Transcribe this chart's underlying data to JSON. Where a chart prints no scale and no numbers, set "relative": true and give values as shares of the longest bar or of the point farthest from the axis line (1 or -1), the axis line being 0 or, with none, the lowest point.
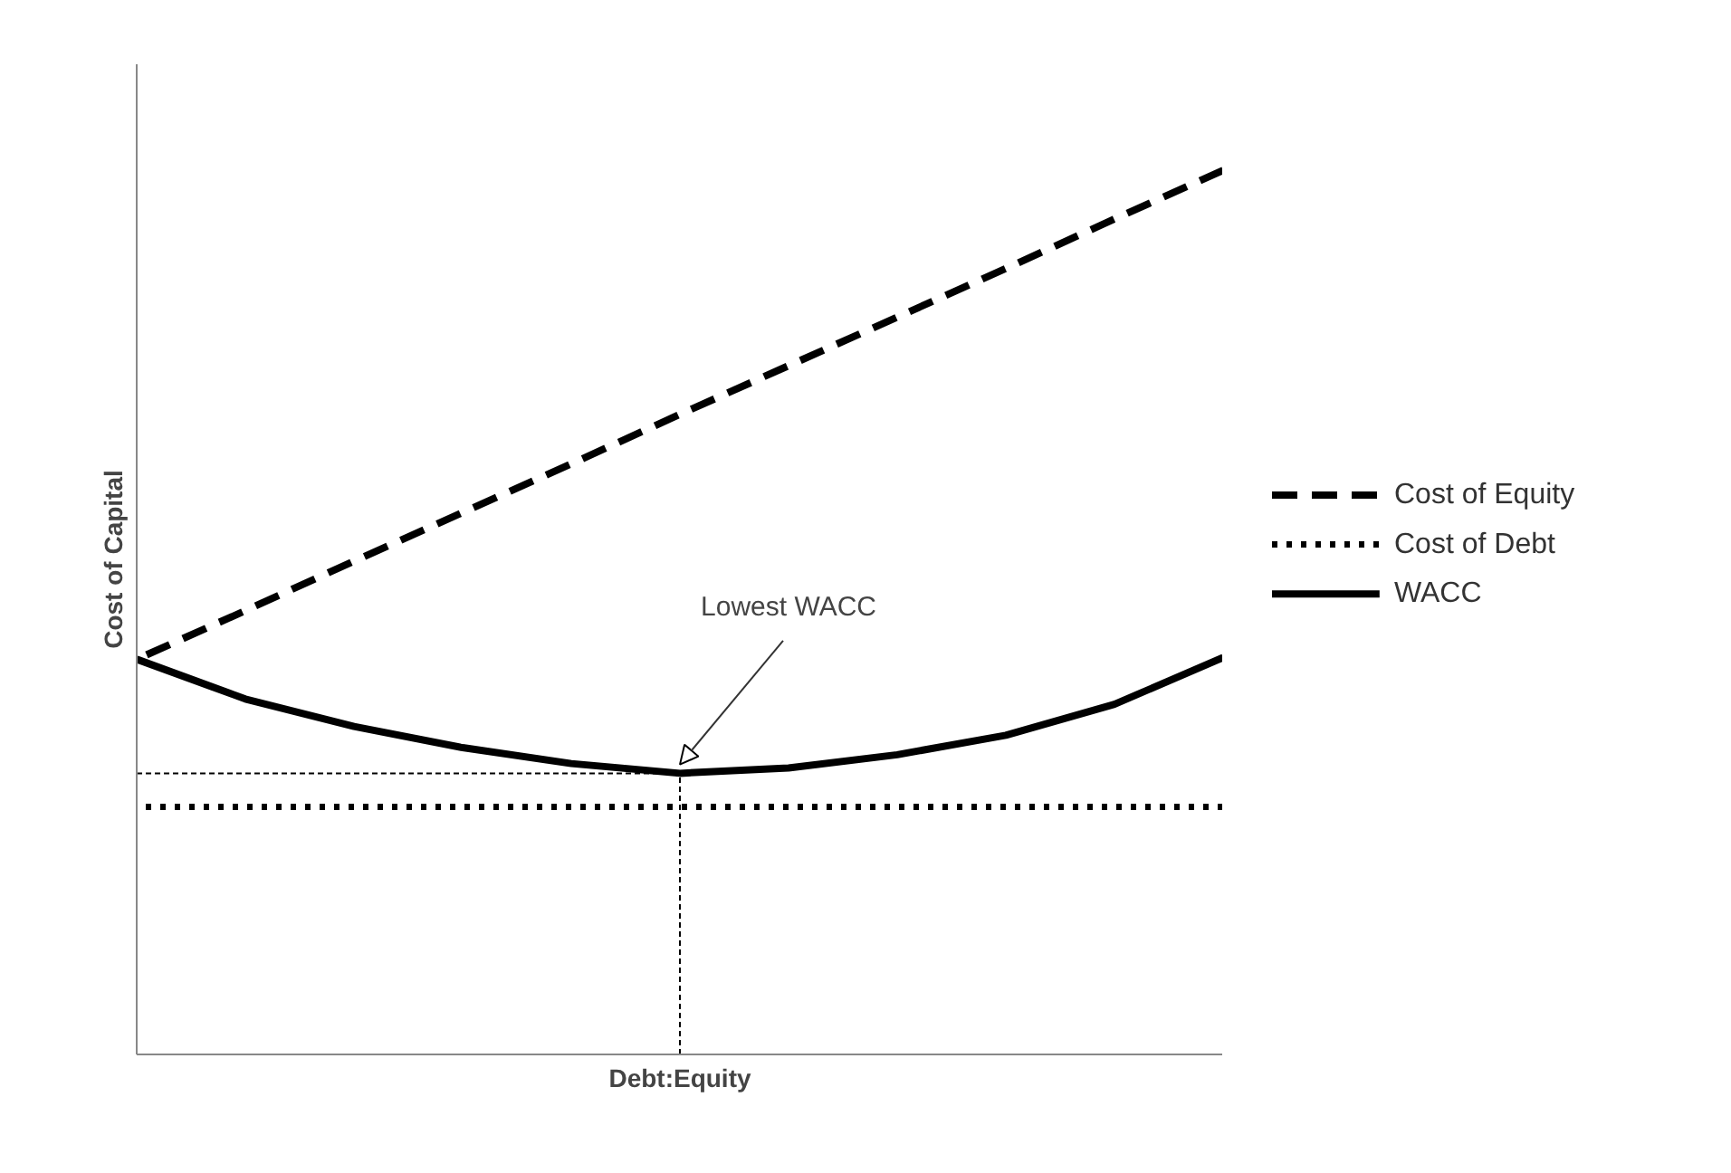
{
  "chart_data": {
    "type": "line",
    "relative": true,
    "xlabel": "Debt:Equity",
    "ylabel": "Cost of Capital",
    "categories": [
      null,
      null,
      null,
      null,
      null,
      null,
      null,
      null,
      null,
      null,
      null
    ],
    "series": [
      {
        "name": "Cost of Equity",
        "color": "#000000",
        "line_style": "dashed",
        "values": [
          0.447,
          0.502,
          0.558,
          0.613,
          0.668,
          0.724,
          0.779,
          0.834,
          0.889,
          0.945,
          1.0
        ]
      },
      {
        "name": "Cost of Debt",
        "color": "#000000",
        "line_style": "dotted",
        "values": [
          0.28,
          0.28,
          0.28,
          0.28,
          0.28,
          0.28,
          0.28,
          0.28,
          0.28,
          0.28,
          0.28
        ]
      },
      {
        "name": "WACC",
        "color": "#000000",
        "line_style": "solid",
        "values": [
          0.447,
          0.402,
          0.371,
          0.347,
          0.329,
          0.318,
          0.324,
          0.339,
          0.361,
          0.396,
          0.449
        ]
      }
    ],
    "ref_lines": [
      {
        "axis": "y",
        "value": 0.318,
        "label": "Lowest WACC",
        "line_style": "dashed"
      }
    ],
    "legend": "right"
  }
}
